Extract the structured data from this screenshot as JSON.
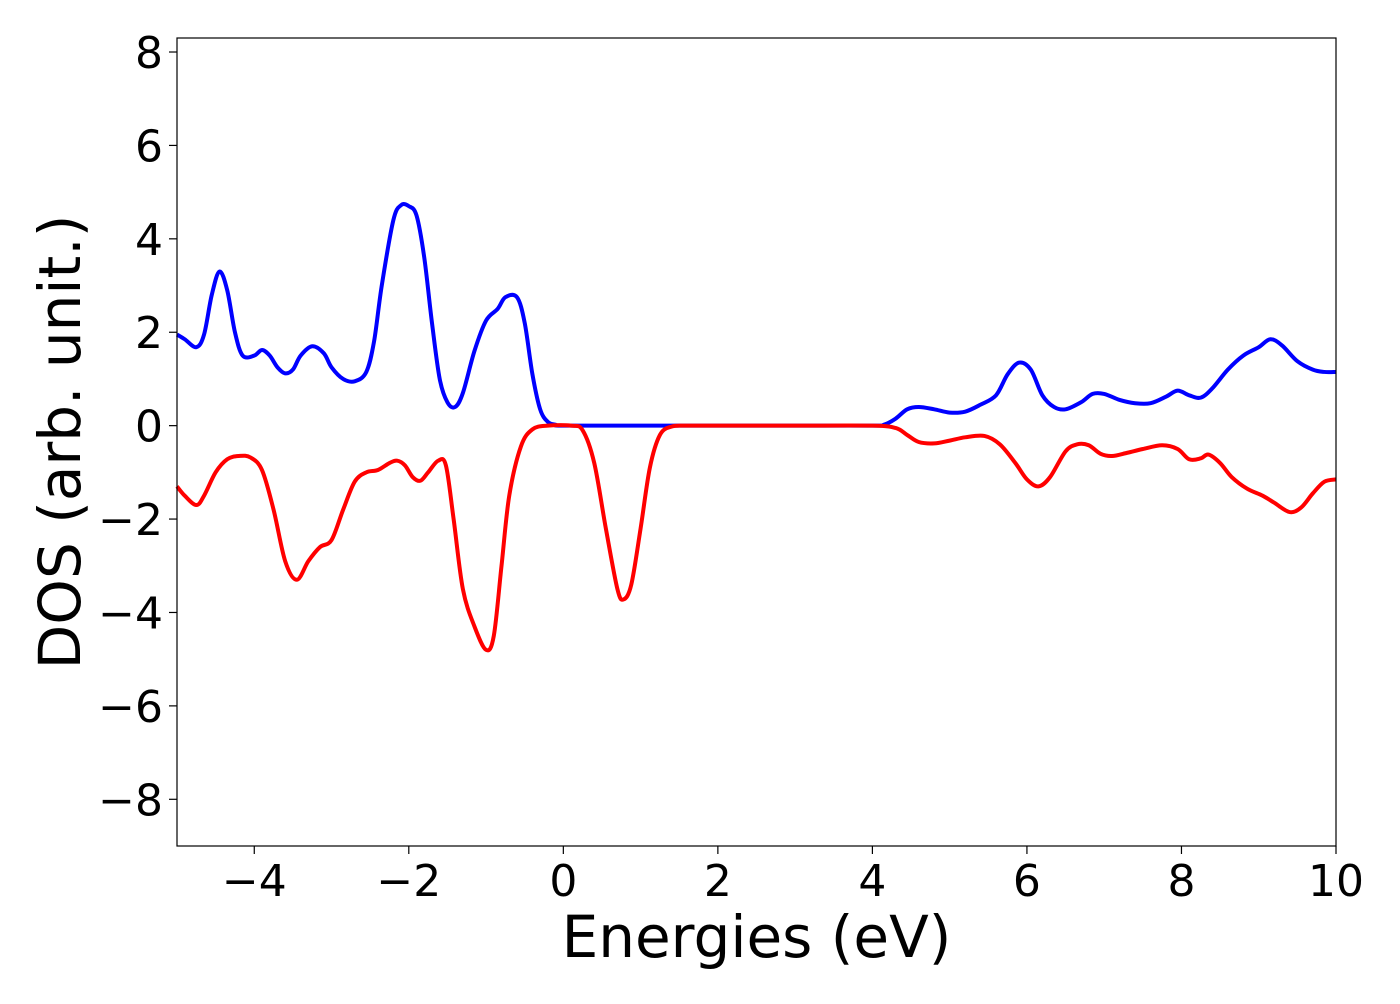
{
  "chart_data": {
    "type": "line",
    "title": "",
    "xlabel": "Energies (eV)",
    "ylabel": "DOS (arb. unit.)",
    "xlim": [
      -5,
      10
    ],
    "ylim": [
      -9,
      8.3
    ],
    "xticks": [
      -4,
      -2,
      0,
      2,
      4,
      6,
      8,
      10
    ],
    "xtick_labels": [
      "−4",
      "−2",
      "0",
      "2",
      "4",
      "6",
      "8",
      "10"
    ],
    "yticks": [
      8,
      6,
      4,
      2,
      0,
      -2,
      -4,
      -6,
      -8
    ],
    "ytick_labels": [
      "8",
      "6",
      "4",
      "2",
      "0",
      "−2",
      "−4",
      "−6",
      "−8"
    ],
    "grid": false,
    "legend": "none",
    "series": [
      {
        "color": "#0000ff",
        "points": [
          [
            -5.0,
            1.95
          ],
          [
            -4.9,
            1.85
          ],
          [
            -4.75,
            1.68
          ],
          [
            -4.65,
            1.95
          ],
          [
            -4.55,
            2.8
          ],
          [
            -4.45,
            3.3
          ],
          [
            -4.35,
            2.9
          ],
          [
            -4.25,
            2.0
          ],
          [
            -4.15,
            1.5
          ],
          [
            -4.0,
            1.5
          ],
          [
            -3.9,
            1.62
          ],
          [
            -3.8,
            1.5
          ],
          [
            -3.7,
            1.25
          ],
          [
            -3.6,
            1.12
          ],
          [
            -3.5,
            1.2
          ],
          [
            -3.4,
            1.5
          ],
          [
            -3.25,
            1.7
          ],
          [
            -3.1,
            1.55
          ],
          [
            -3.0,
            1.25
          ],
          [
            -2.85,
            1.0
          ],
          [
            -2.7,
            0.95
          ],
          [
            -2.55,
            1.15
          ],
          [
            -2.45,
            1.8
          ],
          [
            -2.35,
            3.0
          ],
          [
            -2.2,
            4.4
          ],
          [
            -2.1,
            4.72
          ],
          [
            -2.0,
            4.7
          ],
          [
            -1.9,
            4.5
          ],
          [
            -1.8,
            3.6
          ],
          [
            -1.7,
            2.2
          ],
          [
            -1.6,
            1.0
          ],
          [
            -1.5,
            0.5
          ],
          [
            -1.4,
            0.4
          ],
          [
            -1.3,
            0.7
          ],
          [
            -1.15,
            1.6
          ],
          [
            -1.0,
            2.25
          ],
          [
            -0.85,
            2.5
          ],
          [
            -0.75,
            2.75
          ],
          [
            -0.6,
            2.75
          ],
          [
            -0.5,
            2.2
          ],
          [
            -0.4,
            1.1
          ],
          [
            -0.3,
            0.35
          ],
          [
            -0.2,
            0.08
          ],
          [
            -0.1,
            0.02
          ],
          [
            0.0,
            0.0
          ],
          [
            1.0,
            0.0
          ],
          [
            2.0,
            0.0
          ],
          [
            3.0,
            0.0
          ],
          [
            4.0,
            0.0
          ],
          [
            4.15,
            0.02
          ],
          [
            4.3,
            0.15
          ],
          [
            4.45,
            0.35
          ],
          [
            4.6,
            0.4
          ],
          [
            4.8,
            0.35
          ],
          [
            5.0,
            0.28
          ],
          [
            5.2,
            0.3
          ],
          [
            5.4,
            0.45
          ],
          [
            5.6,
            0.65
          ],
          [
            5.75,
            1.1
          ],
          [
            5.9,
            1.35
          ],
          [
            6.05,
            1.2
          ],
          [
            6.2,
            0.65
          ],
          [
            6.35,
            0.4
          ],
          [
            6.5,
            0.35
          ],
          [
            6.7,
            0.5
          ],
          [
            6.85,
            0.68
          ],
          [
            7.0,
            0.68
          ],
          [
            7.2,
            0.55
          ],
          [
            7.4,
            0.48
          ],
          [
            7.6,
            0.48
          ],
          [
            7.8,
            0.62
          ],
          [
            7.95,
            0.75
          ],
          [
            8.1,
            0.65
          ],
          [
            8.25,
            0.6
          ],
          [
            8.4,
            0.8
          ],
          [
            8.6,
            1.2
          ],
          [
            8.8,
            1.5
          ],
          [
            9.0,
            1.68
          ],
          [
            9.15,
            1.85
          ],
          [
            9.3,
            1.72
          ],
          [
            9.5,
            1.38
          ],
          [
            9.7,
            1.2
          ],
          [
            9.85,
            1.15
          ],
          [
            10.0,
            1.15
          ]
        ]
      },
      {
        "color": "#ff0000",
        "points": [
          [
            -5.0,
            -1.3
          ],
          [
            -4.9,
            -1.5
          ],
          [
            -4.75,
            -1.7
          ],
          [
            -4.65,
            -1.5
          ],
          [
            -4.5,
            -1.0
          ],
          [
            -4.35,
            -0.72
          ],
          [
            -4.2,
            -0.65
          ],
          [
            -4.05,
            -0.68
          ],
          [
            -3.9,
            -0.95
          ],
          [
            -3.75,
            -1.8
          ],
          [
            -3.6,
            -2.9
          ],
          [
            -3.45,
            -3.3
          ],
          [
            -3.3,
            -2.9
          ],
          [
            -3.15,
            -2.6
          ],
          [
            -3.0,
            -2.45
          ],
          [
            -2.85,
            -1.8
          ],
          [
            -2.7,
            -1.2
          ],
          [
            -2.55,
            -1.0
          ],
          [
            -2.4,
            -0.95
          ],
          [
            -2.25,
            -0.8
          ],
          [
            -2.15,
            -0.75
          ],
          [
            -2.05,
            -0.85
          ],
          [
            -1.95,
            -1.1
          ],
          [
            -1.85,
            -1.18
          ],
          [
            -1.75,
            -1.0
          ],
          [
            -1.62,
            -0.75
          ],
          [
            -1.52,
            -0.85
          ],
          [
            -1.42,
            -2.0
          ],
          [
            -1.3,
            -3.5
          ],
          [
            -1.15,
            -4.3
          ],
          [
            -1.0,
            -4.8
          ],
          [
            -0.9,
            -4.5
          ],
          [
            -0.8,
            -3.0
          ],
          [
            -0.7,
            -1.5
          ],
          [
            -0.55,
            -0.45
          ],
          [
            -0.4,
            -0.08
          ],
          [
            -0.2,
            0.0
          ],
          [
            0.1,
            0.0
          ],
          [
            0.25,
            -0.1
          ],
          [
            0.4,
            -0.8
          ],
          [
            0.55,
            -2.2
          ],
          [
            0.7,
            -3.5
          ],
          [
            0.78,
            -3.72
          ],
          [
            0.88,
            -3.4
          ],
          [
            1.0,
            -2.2
          ],
          [
            1.12,
            -0.9
          ],
          [
            1.25,
            -0.2
          ],
          [
            1.4,
            -0.02
          ],
          [
            1.6,
            0.0
          ],
          [
            2.0,
            0.0
          ],
          [
            3.0,
            0.0
          ],
          [
            4.0,
            0.0
          ],
          [
            4.3,
            -0.05
          ],
          [
            4.45,
            -0.2
          ],
          [
            4.6,
            -0.35
          ],
          [
            4.8,
            -0.38
          ],
          [
            5.0,
            -0.32
          ],
          [
            5.2,
            -0.25
          ],
          [
            5.45,
            -0.22
          ],
          [
            5.65,
            -0.4
          ],
          [
            5.85,
            -0.8
          ],
          [
            6.0,
            -1.15
          ],
          [
            6.15,
            -1.3
          ],
          [
            6.3,
            -1.1
          ],
          [
            6.5,
            -0.55
          ],
          [
            6.65,
            -0.4
          ],
          [
            6.8,
            -0.42
          ],
          [
            6.95,
            -0.6
          ],
          [
            7.1,
            -0.65
          ],
          [
            7.3,
            -0.58
          ],
          [
            7.5,
            -0.5
          ],
          [
            7.75,
            -0.42
          ],
          [
            7.95,
            -0.5
          ],
          [
            8.1,
            -0.72
          ],
          [
            8.25,
            -0.7
          ],
          [
            8.35,
            -0.62
          ],
          [
            8.5,
            -0.8
          ],
          [
            8.65,
            -1.1
          ],
          [
            8.85,
            -1.35
          ],
          [
            9.05,
            -1.5
          ],
          [
            9.2,
            -1.65
          ],
          [
            9.4,
            -1.85
          ],
          [
            9.55,
            -1.75
          ],
          [
            9.7,
            -1.45
          ],
          [
            9.85,
            -1.2
          ],
          [
            10.0,
            -1.15
          ]
        ]
      }
    ]
  }
}
